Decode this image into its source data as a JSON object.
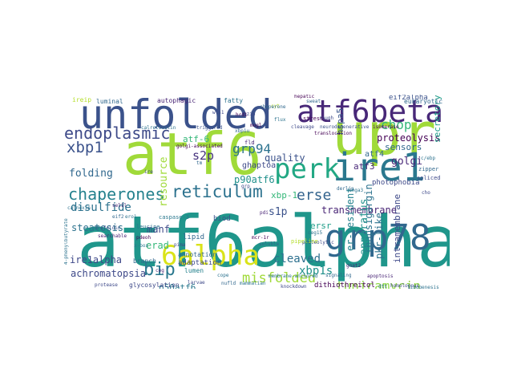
{
  "words": [
    {
      "text": "atf6alpha",
      "color": "#1f968b"
    },
    {
      "text": "atf6",
      "color": "#a0da39"
    },
    {
      "text": "upr",
      "color": "#a0da39"
    },
    {
      "text": "unfolded",
      "color": "#3b528b"
    },
    {
      "text": "atf6beta",
      "color": "#482878"
    },
    {
      "text": "ire1",
      "color": "#2a788e"
    },
    {
      "text": "grp78",
      "color": "#31688e"
    },
    {
      "text": "perk",
      "color": "#22a884"
    },
    {
      "text": "6alpha",
      "color": "#dae319"
    },
    {
      "text": "chaperones",
      "color": "#26828e"
    },
    {
      "text": "reticulum",
      "color": "#2c728e"
    },
    {
      "text": "endoplasmic",
      "color": "#3e4a89"
    },
    {
      "text": "bip",
      "color": "#2a788e"
    },
    {
      "text": "xbp1",
      "color": "#3b528b"
    },
    {
      "text": "grp94",
      "color": "#2c728e"
    },
    {
      "text": "misfolded",
      "color": "#a0da39"
    },
    {
      "text": "tunicamycin",
      "color": "#8fd744"
    },
    {
      "text": "erse",
      "color": "#33638d"
    },
    {
      "text": "p90atf6",
      "color": "#21918c"
    },
    {
      "text": "chop",
      "color": "#35b779"
    },
    {
      "text": "proteolysis",
      "color": "#440154"
    },
    {
      "text": "cleaved",
      "color": "#2d708e"
    },
    {
      "text": "transmembrane",
      "color": "#482475"
    },
    {
      "text": "folding",
      "color": "#31688e"
    },
    {
      "text": "s2p",
      "color": "#46327e"
    },
    {
      "text": "s1p",
      "color": "#3b528b"
    },
    {
      "text": "xbp1s",
      "color": "#21918c"
    },
    {
      "text": "disulfide",
      "color": "#2c728e"
    },
    {
      "text": "steatosis",
      "color": "#2c728e"
    },
    {
      "text": "achromatopsia",
      "color": "#3e4989"
    },
    {
      "text": "ire1alpha",
      "color": "#3e4989"
    },
    {
      "text": "thapsigargin",
      "color": "#2c728e"
    },
    {
      "text": "apparatus",
      "color": "#21918c"
    },
    {
      "text": "golgi",
      "color": "#482878"
    },
    {
      "text": "quality",
      "color": "#3b528b"
    },
    {
      "text": "sensors",
      "color": "#31688e"
    },
    {
      "text": "secretory",
      "color": "#1f9e89"
    },
    {
      "text": "p50atf6",
      "color": "#2a788e"
    },
    {
      "text": "erad",
      "color": "#35b779"
    },
    {
      "text": "manf",
      "color": "#3e4989"
    },
    {
      "text": "ersr",
      "color": "#1f9e89"
    },
    {
      "text": "resource",
      "color": "#a0da39"
    },
    {
      "text": "atf-6",
      "color": "#35b779"
    },
    {
      "text": "hspa5",
      "color": "#39568c"
    },
    {
      "text": "ghaptoa",
      "color": "#3e4989"
    },
    {
      "text": "atf3",
      "color": "#482878"
    },
    {
      "text": "atf4",
      "color": "#31688e"
    },
    {
      "text": "pkr-like",
      "color": "#2c728e"
    },
    {
      "text": "intramembrane",
      "color": "#3e4989"
    },
    {
      "text": "er-resident",
      "color": "#26828e"
    },
    {
      "text": "xbp-1",
      "color": "#35b779"
    },
    {
      "text": "adaptation",
      "color": "#3e4989"
    },
    {
      "text": "annotation",
      "color": "#31688e"
    },
    {
      "text": "glycosylation",
      "color": "#3e4989"
    },
    {
      "text": "lipid",
      "color": "#31688e"
    },
    {
      "text": "biod",
      "color": "#3b528b"
    },
    {
      "text": "lumen",
      "color": "#26828e"
    },
    {
      "text": "photophobia",
      "color": "#3e4989"
    },
    {
      "text": "dithiothreitol",
      "color": "#440154"
    },
    {
      "text": "branch",
      "color": "#31688e"
    },
    {
      "text": "luminal",
      "color": "#31688e"
    },
    {
      "text": "autophagic",
      "color": "#482475"
    },
    {
      "text": "fatty",
      "color": "#2c728e"
    },
    {
      "text": "eukaryotic",
      "color": "#31688e"
    },
    {
      "text": "eif2alpha",
      "color": "#3b528b"
    },
    {
      "text": "ireip",
      "color": "#b5de2b"
    },
    {
      "text": "cleavage",
      "color": "#3e4989"
    },
    {
      "text": "leucine",
      "color": "#2c728e"
    },
    {
      "text": "stress",
      "color": "#440154"
    },
    {
      "text": "spliced",
      "color": "#3e4989"
    },
    {
      "text": "zipper",
      "color": "#31688e"
    },
    {
      "text": "c/ebp",
      "color": "#2c728e"
    },
    {
      "text": "pdeoh",
      "color": "#440154"
    },
    {
      "text": "caspase-3",
      "color": "#2a788e"
    },
    {
      "text": "calreticulin",
      "color": "#2c728e"
    },
    {
      "text": "brefeldin",
      "color": "#3b528b"
    },
    {
      "text": "searchable",
      "color": "#482475"
    },
    {
      "text": "x-box",
      "color": "#2a788e"
    },
    {
      "text": "pima",
      "color": "#3e4989"
    },
    {
      "text": "nufld",
      "color": "#31688e"
    },
    {
      "text": "cope",
      "color": "#2c728e"
    },
    {
      "text": "mcr-1r",
      "color": "#440154"
    },
    {
      "text": "gnat2",
      "color": "#482878"
    },
    {
      "text": "protease",
      "color": "#3e4989"
    },
    {
      "text": "4-phenylbutyrate",
      "color": "#2c728e"
    },
    {
      "text": "isomerase",
      "color": "#440154"
    },
    {
      "text": "soluble",
      "color": "#31688e"
    },
    {
      "text": "grp",
      "color": "#3e4989"
    },
    {
      "text": "fld",
      "color": "#482475"
    },
    {
      "text": "larvae",
      "color": "#3e4989"
    },
    {
      "text": "ceg15",
      "color": "#2c728e"
    },
    {
      "text": "mugl",
      "color": "#440154"
    },
    {
      "text": "xbp1u",
      "color": "#31688e"
    },
    {
      "text": "triggered",
      "color": "#3b528b"
    },
    {
      "text": "calnexin",
      "color": "#2c728e"
    },
    {
      "text": "hepatic",
      "color": "#440154"
    },
    {
      "text": "homologous",
      "color": "#3e4989"
    },
    {
      "text": "apoptosis",
      "color": "#482475"
    },
    {
      "text": "membrane-anchored",
      "color": "#2c728e"
    },
    {
      "text": "proteolytic",
      "color": "#3e4989"
    },
    {
      "text": "neurodegenerative",
      "color": "#3b528b"
    },
    {
      "text": "lipogenesis",
      "color": "#2c728e"
    },
    {
      "text": "signaling",
      "color": "#31688e"
    },
    {
      "text": "knockdown",
      "color": "#3e4989"
    },
    {
      "text": "pipeline",
      "color": "#b5de2b"
    },
    {
      "text": "mammalian",
      "color": "#2c728e"
    },
    {
      "text": "translocation",
      "color": "#440154"
    },
    {
      "text": "tm",
      "color": "#31688e"
    },
    {
      "text": "ire",
      "color": "#3e4989"
    },
    {
      "text": "ceg",
      "color": "#482475"
    },
    {
      "text": "cyt",
      "color": "#b5de2b"
    },
    {
      "text": "eif2",
      "color": "#31688e"
    },
    {
      "text": "dtt",
      "color": "#2c728e"
    },
    {
      "text": "cho",
      "color": "#3e4989"
    },
    {
      "text": "golgi-associated",
      "color": "#440154"
    },
    {
      "text": "sweat",
      "color": "#31688e"
    },
    {
      "text": "flux",
      "color": "#2c728e"
    },
    {
      "text": "rough",
      "color": "#3e4989"
    },
    {
      "text": "chaperone",
      "color": "#31688e"
    },
    {
      "text": "sel1l",
      "color": "#482475"
    },
    {
      "text": "cnga3",
      "color": "#2c728e"
    },
    {
      "text": "bzip",
      "color": "#3e4989"
    },
    {
      "text": "hrd1",
      "color": "#440154"
    },
    {
      "text": "ero1",
      "color": "#2c728e"
    },
    {
      "text": "derlin",
      "color": "#31688e"
    },
    {
      "text": "wfs1",
      "color": "#3e4989"
    },
    {
      "text": "pdi",
      "color": "#482475"
    }
  ]
}
